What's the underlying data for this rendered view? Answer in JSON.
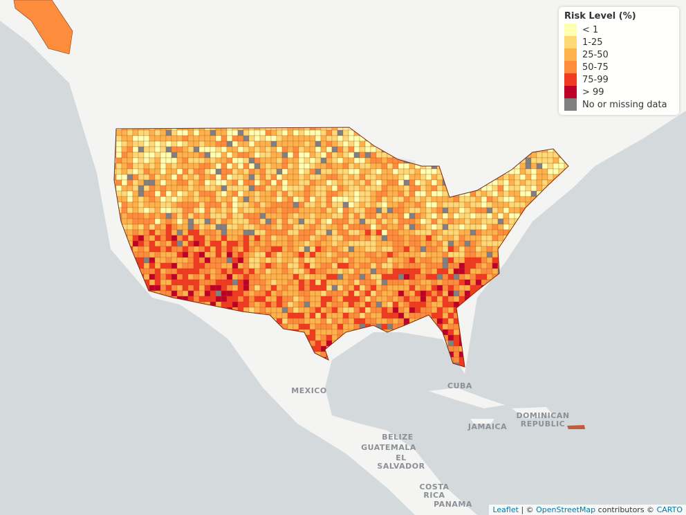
{
  "legend": {
    "title": "Risk Level (%)",
    "items": [
      {
        "label": "< 1",
        "color": "#ffffb2"
      },
      {
        "label": "1-25",
        "color": "#fed976"
      },
      {
        "label": "25-50",
        "color": "#feb24c"
      },
      {
        "label": "50-75",
        "color": "#fd8d3c"
      },
      {
        "label": "75-99",
        "color": "#f03b20"
      },
      {
        "label": "> 99",
        "color": "#bd0026"
      },
      {
        "label": "No or missing data",
        "color": "#808080"
      }
    ]
  },
  "places": [
    {
      "lines": [
        "MEXICO"
      ]
    },
    {
      "lines": [
        "CUBA"
      ]
    },
    {
      "lines": [
        "JAMAICA"
      ]
    },
    {
      "lines": [
        "DOMINICAN",
        "REPUBLIC"
      ]
    },
    {
      "lines": [
        "BELIZE"
      ]
    },
    {
      "lines": [
        "GUATEMALA"
      ]
    },
    {
      "lines": [
        "EL",
        "SALVADOR"
      ]
    },
    {
      "lines": [
        "COSTA",
        "RICA"
      ]
    },
    {
      "lines": [
        "PANAMA"
      ]
    }
  ],
  "attribution": {
    "leaflet": "Leaflet",
    "sep1": "| ©",
    "osm": "OpenStreetMap",
    "sep2": "contributors ©",
    "carto": "CARTO"
  }
}
